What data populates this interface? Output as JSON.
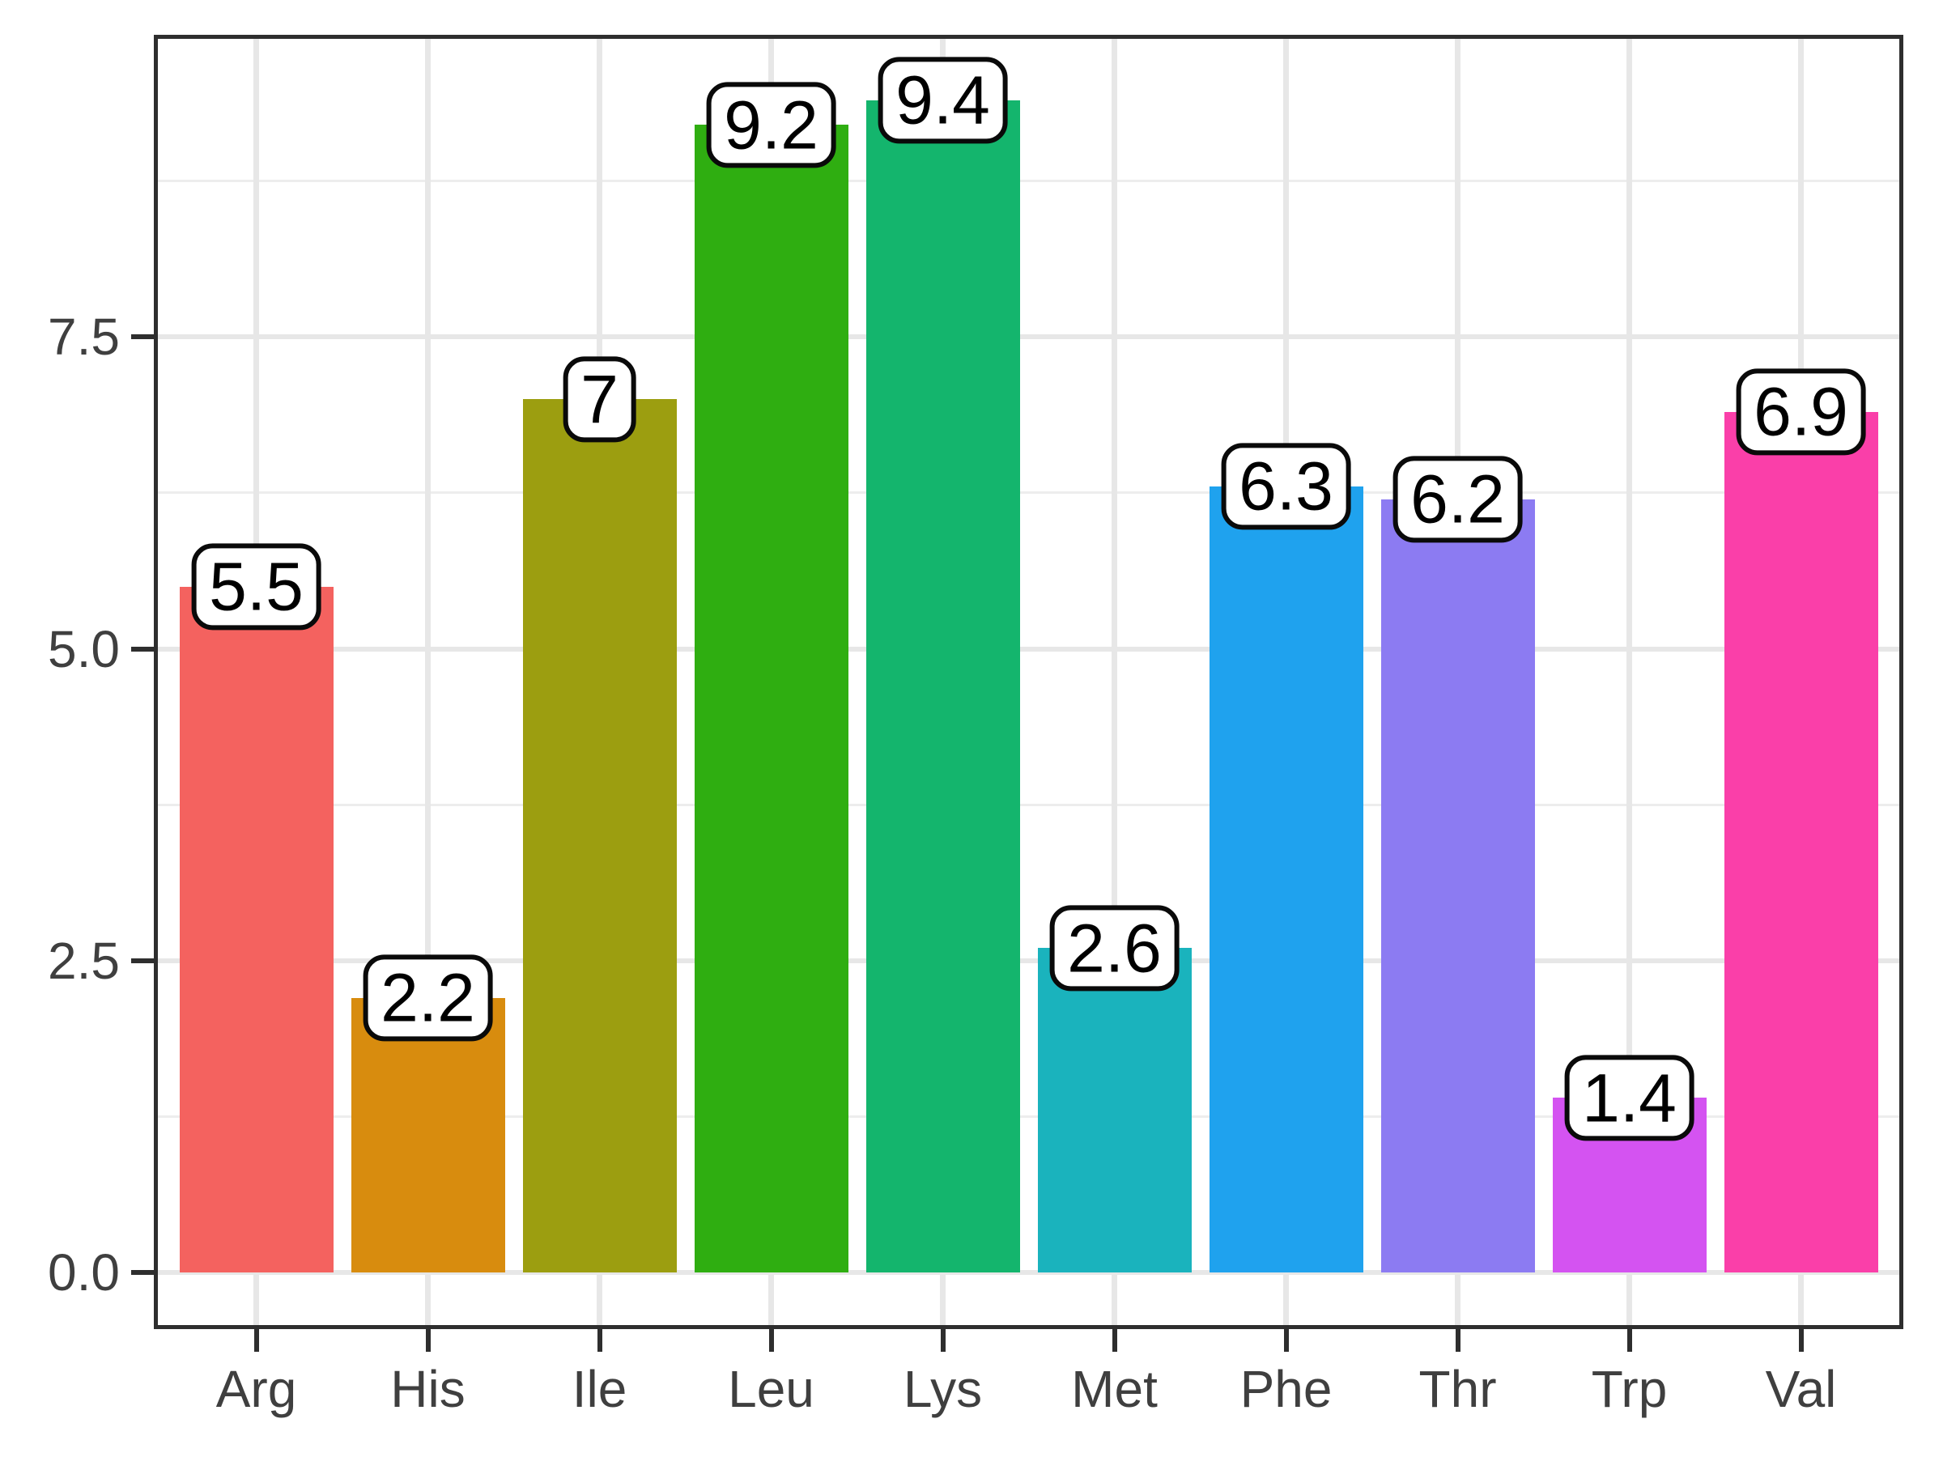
{
  "chart_data": {
    "type": "bar",
    "title": "",
    "xlabel": "",
    "ylabel": "",
    "categories": [
      "Arg",
      "His",
      "Ile",
      "Leu",
      "Lys",
      "Met",
      "Phe",
      "Thr",
      "Trp",
      "Val"
    ],
    "values": [
      5.5,
      2.2,
      7,
      9.2,
      9.4,
      2.6,
      6.3,
      6.2,
      1.4,
      6.9
    ],
    "value_labels": [
      "5.5",
      "2.2",
      "7",
      "9.2",
      "9.4",
      "2.6",
      "6.3",
      "6.2",
      "1.4",
      "6.9"
    ],
    "bar_colors": [
      "#f4625f",
      "#d88c0e",
      "#9c9e10",
      "#2fae11",
      "#14b56d",
      "#1ab3bd",
      "#1fa2ee",
      "#8c7bf2",
      "#d453f1",
      "#fa3fa9"
    ],
    "y_axis": {
      "tick_labels": [
        "0.0",
        "2.5",
        "5.0",
        "7.5"
      ],
      "tick_values": [
        0,
        2.5,
        5,
        7.5
      ],
      "minor_values": [
        1.25,
        3.75,
        6.25,
        8.75
      ],
      "range": [
        -0.47,
        9.87
      ]
    },
    "grid": true,
    "legend_position": "none",
    "label_box": {
      "background": "#ffffff",
      "border_color": "#0a0a0a"
    }
  },
  "style": {
    "panel_border_color": "#2e2e2e",
    "grid_major_color": "#e7e7e7",
    "grid_minor_color": "#ededed",
    "axis_text_color": "#3f3f3f",
    "tick_color": "#2e2e2e",
    "panel_background": "#ffffff"
  }
}
